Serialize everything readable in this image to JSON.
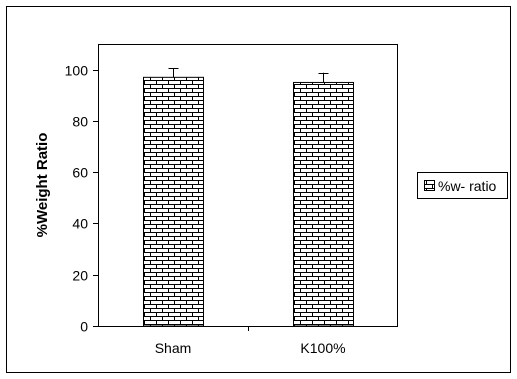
{
  "chart_data": {
    "type": "bar",
    "categories": [
      "Sham",
      "K100%"
    ],
    "series": [
      {
        "name": "%w- ratio",
        "values": [
          97,
          95
        ],
        "errors": [
          3.5,
          3.8
        ],
        "fill_pattern": "brick",
        "color": "#000000"
      }
    ],
    "title": "",
    "xlabel": "",
    "ylabel": "%Weight Ratio",
    "ylim": [
      0,
      110
    ],
    "yticks": [
      0,
      20,
      40,
      60,
      80,
      100
    ],
    "grid": false,
    "legend_position": "right"
  }
}
